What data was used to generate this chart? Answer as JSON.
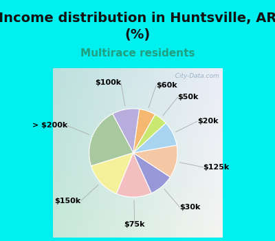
{
  "title": "Income distribution in Huntsville, AR\n(%)",
  "subtitle": "Multirace residents",
  "labels": [
    "$100k",
    "> $200k",
    "$150k",
    "$75k",
    "$30k",
    "$125k",
    "$20k",
    "$50k",
    "$60k"
  ],
  "sizes": [
    10,
    22,
    14,
    13,
    9,
    12,
    9,
    5,
    6
  ],
  "colors": [
    "#b8aedd",
    "#a8c8a0",
    "#f5f09a",
    "#f2bec0",
    "#9898d8",
    "#f5c8a5",
    "#a8d4f0",
    "#c8e870",
    "#f5b870"
  ],
  "bg_cyan": "#00f0f0",
  "bg_chart_tl": "#b8e8d0",
  "bg_chart_br": "#e0f0f0",
  "title_fontsize": 14,
  "subtitle_fontsize": 11,
  "subtitle_color": "#20a080",
  "label_fontsize": 8,
  "startangle": 82,
  "watermark": "  City-Data.com"
}
